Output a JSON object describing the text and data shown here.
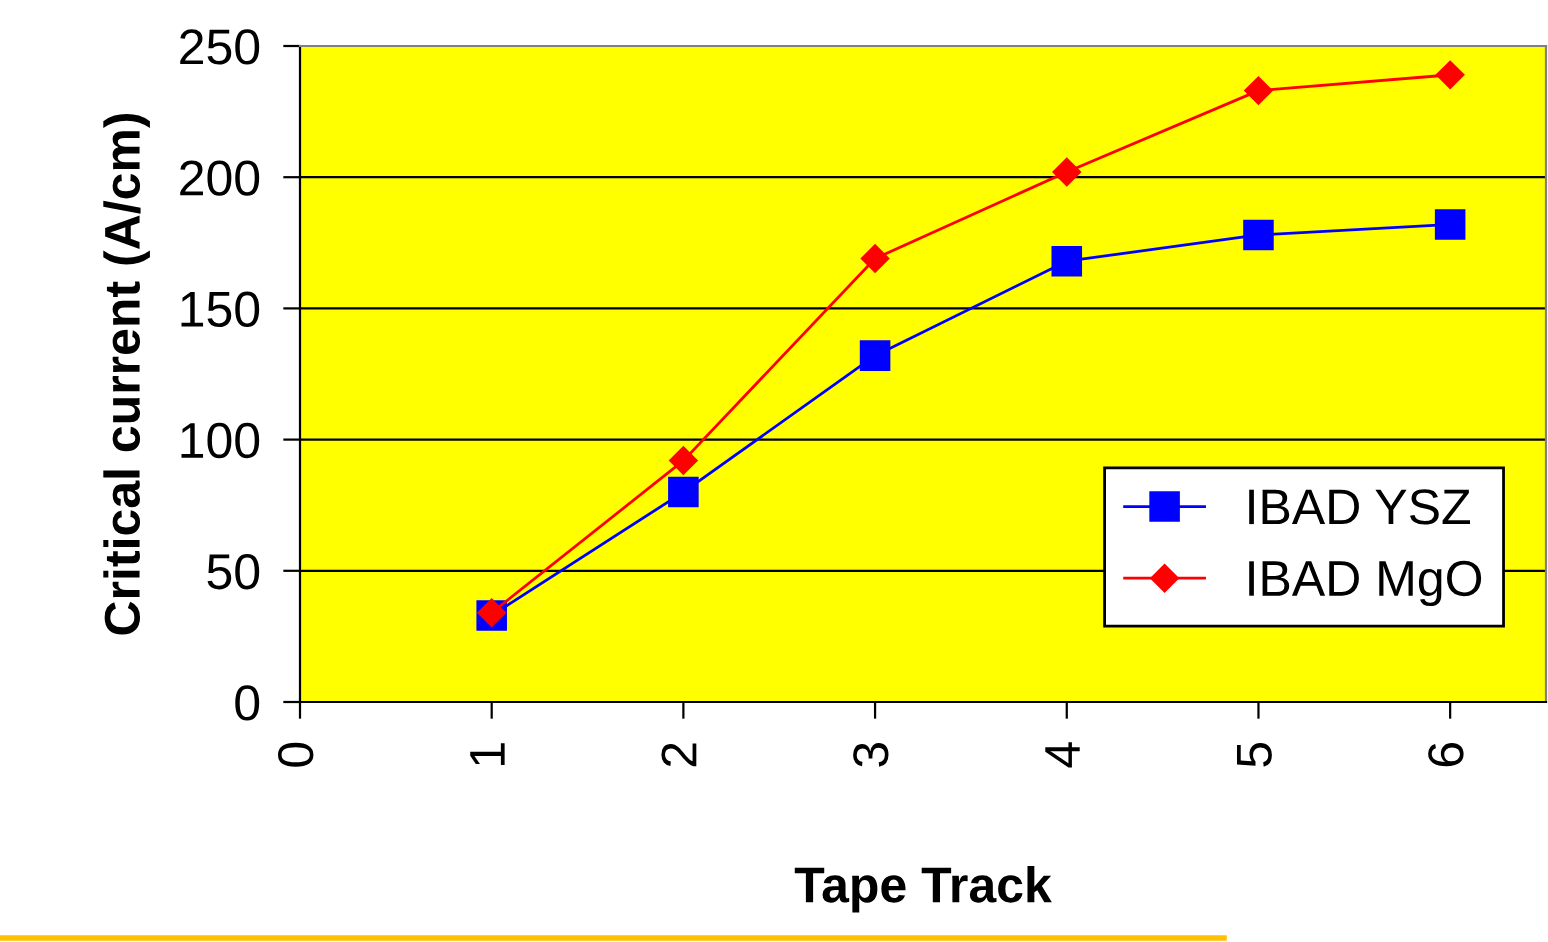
{
  "chart_data": {
    "type": "line",
    "xlabel": "Tape Track",
    "ylabel": "Critical current (A/cm)",
    "x": [
      1,
      2,
      3,
      4,
      5,
      6
    ],
    "series": [
      {
        "name": "IBAD YSZ",
        "color": "#0000ff",
        "marker": "square",
        "values": [
          33,
          80,
          132,
          168,
          178,
          182
        ]
      },
      {
        "name": "IBAD MgO",
        "color": "#ff0000",
        "marker": "diamond",
        "values": [
          34,
          92,
          169,
          202,
          233,
          239
        ]
      }
    ],
    "xlim": [
      0,
      6.5
    ],
    "xticks": [
      0,
      1,
      2,
      3,
      4,
      5,
      6
    ],
    "ylim": [
      0,
      250
    ],
    "yticks": [
      0,
      50,
      100,
      150,
      200,
      250
    ],
    "grid": "y",
    "legend": "bottom right",
    "line_style": "solid"
  }
}
